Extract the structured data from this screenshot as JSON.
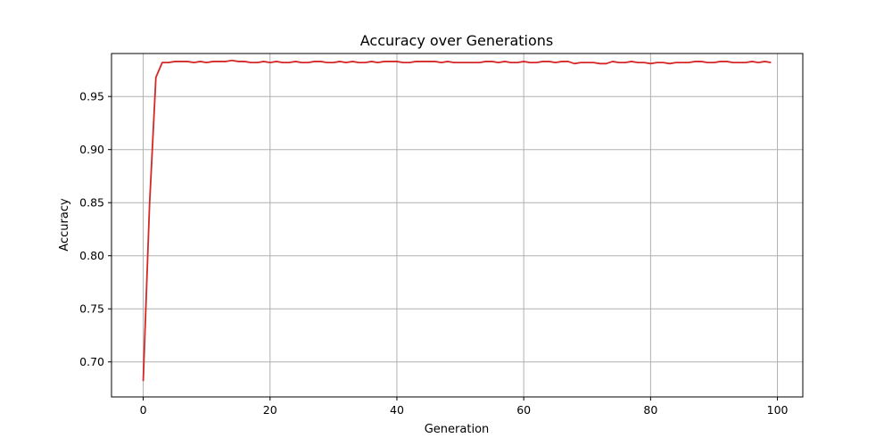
{
  "chart_data": {
    "type": "line",
    "title": "Accuracy over Generations",
    "xlabel": "Generation",
    "ylabel": "Accuracy",
    "xlim": [
      -5,
      104
    ],
    "ylim": [
      0.667,
      0.9905
    ],
    "x_ticks": [
      0,
      20,
      40,
      60,
      80,
      100
    ],
    "y_ticks": [
      0.7,
      0.75,
      0.8,
      0.85,
      0.9,
      0.95
    ],
    "x_tick_labels": [
      "0",
      "20",
      "40",
      "60",
      "80",
      "100"
    ],
    "y_tick_labels": [
      "0.70",
      "0.75",
      "0.80",
      "0.85",
      "0.90",
      "0.95"
    ],
    "grid": true,
    "legend": "none",
    "series": [
      {
        "color": "#d62728",
        "x": [
          0,
          1,
          2,
          3,
          4,
          5,
          6,
          7,
          8,
          9,
          10,
          11,
          12,
          13,
          14,
          15,
          16,
          17,
          18,
          19,
          20,
          21,
          22,
          23,
          24,
          25,
          26,
          27,
          28,
          29,
          30,
          31,
          32,
          33,
          34,
          35,
          36,
          37,
          38,
          39,
          40,
          41,
          42,
          43,
          44,
          45,
          46,
          47,
          48,
          49,
          50,
          51,
          52,
          53,
          54,
          55,
          56,
          57,
          58,
          59,
          60,
          61,
          62,
          63,
          64,
          65,
          66,
          67,
          68,
          69,
          70,
          71,
          72,
          73,
          74,
          75,
          76,
          77,
          78,
          79,
          80,
          81,
          82,
          83,
          84,
          85,
          86,
          87,
          88,
          89,
          90,
          91,
          92,
          93,
          94,
          95,
          96,
          97,
          98,
          99
        ],
        "values": [
          0.682,
          0.848,
          0.968,
          0.982,
          0.982,
          0.983,
          0.983,
          0.983,
          0.982,
          0.983,
          0.982,
          0.983,
          0.983,
          0.983,
          0.984,
          0.983,
          0.983,
          0.982,
          0.982,
          0.983,
          0.982,
          0.983,
          0.982,
          0.982,
          0.983,
          0.982,
          0.982,
          0.983,
          0.983,
          0.982,
          0.982,
          0.983,
          0.982,
          0.983,
          0.982,
          0.982,
          0.983,
          0.982,
          0.983,
          0.983,
          0.983,
          0.982,
          0.982,
          0.983,
          0.983,
          0.983,
          0.983,
          0.982,
          0.983,
          0.982,
          0.982,
          0.982,
          0.982,
          0.982,
          0.983,
          0.983,
          0.982,
          0.983,
          0.982,
          0.982,
          0.983,
          0.982,
          0.982,
          0.983,
          0.983,
          0.982,
          0.983,
          0.983,
          0.981,
          0.982,
          0.982,
          0.982,
          0.981,
          0.981,
          0.983,
          0.982,
          0.982,
          0.983,
          0.982,
          0.982,
          0.981,
          0.982,
          0.982,
          0.981,
          0.982,
          0.982,
          0.982,
          0.983,
          0.983,
          0.982,
          0.982,
          0.983,
          0.983,
          0.982,
          0.982,
          0.982,
          0.983,
          0.982,
          0.983,
          0.982
        ]
      }
    ]
  }
}
